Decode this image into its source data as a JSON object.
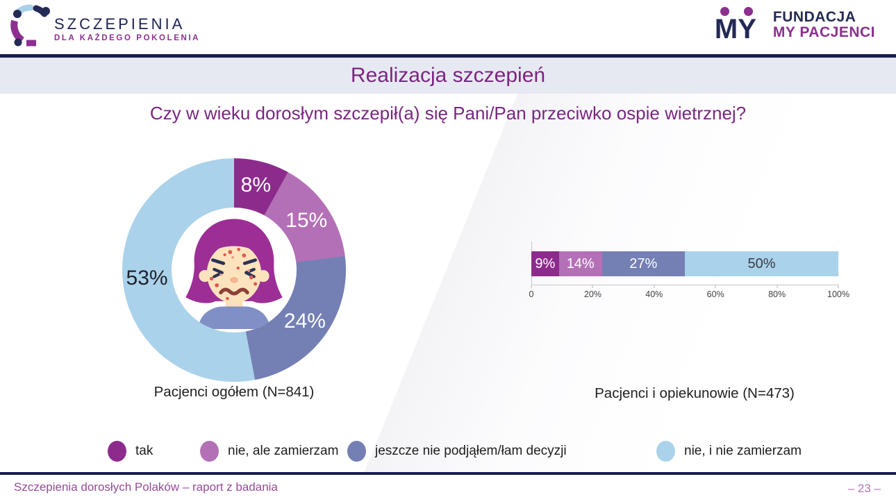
{
  "header": {
    "left_logo": {
      "line1": "SZCZEPIENIA",
      "line2": "DLA KAŻDEGO POKOLENIA"
    },
    "right_logo": {
      "mark": "MY",
      "line1": "FUNDACJA",
      "line2": "MY PACJENCI"
    }
  },
  "title_bar": {
    "title": "Realizacja szczepień"
  },
  "question": "Czy w wieku dorosłym szczepił(a) się Pani/Pan przeciwko ospie wietrznej?",
  "colors": [
    "#8d2b8c",
    "#b470b6",
    "#7480b4",
    "#aad2ea"
  ],
  "chart_data": [
    {
      "type": "pie",
      "style": "donut",
      "title": "Pacjenci ogółem (N=841)",
      "categories": [
        "tak",
        "nie, ale zamierzam",
        "jeszcze nie podjąłem/łam decyzji",
        "nie, i nie zamierzam"
      ],
      "values": [
        8,
        15,
        24,
        53
      ],
      "value_labels": [
        "8%",
        "15%",
        "24%",
        "53%"
      ],
      "label_colors": [
        "#ffffff",
        "#ffffff",
        "#ffffff",
        "#20202a"
      ],
      "start_angle_deg": 0,
      "direction": "clockwise",
      "center_illustration": "girl-with-chickenpox"
    },
    {
      "type": "bar",
      "orientation": "horizontal-stacked",
      "title": "Pacjenci i opiekunowie (N=473)",
      "categories": [
        "tak",
        "nie, ale zamierzam",
        "jeszcze nie podjąłem/łam decyzji",
        "nie, i nie zamierzam"
      ],
      "values": [
        9,
        14,
        27,
        50
      ],
      "value_labels": [
        "9%",
        "14%",
        "27%",
        "50%"
      ],
      "label_colors": [
        "#ffffff",
        "#ffffff",
        "#ffffff",
        "#3a3a42"
      ],
      "xlim": [
        0,
        100
      ],
      "x_ticks": [
        "0",
        "20%",
        "40%",
        "60%",
        "80%",
        "100%"
      ],
      "grid": false
    }
  ],
  "legend": {
    "position": "bottom",
    "items": [
      {
        "label": "tak",
        "color": "#8d2b8c"
      },
      {
        "label": "nie, ale zamierzam",
        "color": "#b470b6"
      },
      {
        "label": "jeszcze nie podjąłem/łam decyzji",
        "color": "#7480b4"
      },
      {
        "label": "nie, i nie zamierzam",
        "color": "#aad2ea"
      }
    ]
  },
  "footer": {
    "left": "Szczepienia dorosłych Polaków – raport z badania",
    "page": "– 23 –"
  }
}
